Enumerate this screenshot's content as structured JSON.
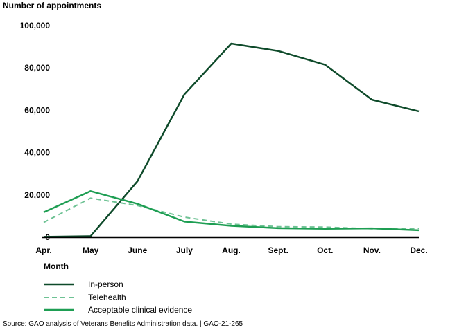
{
  "chart_data": {
    "type": "line",
    "ylabel": "Number of appointments",
    "xlabel": "Month",
    "categories": [
      "Apr.",
      "May",
      "June",
      "July",
      "Aug.",
      "Sept.",
      "Oct.",
      "Nov.",
      "Dec."
    ],
    "ylim": [
      0,
      100000
    ],
    "yticks": [
      0,
      20000,
      40000,
      60000,
      80000,
      100000
    ],
    "ytick_labels": [
      "0",
      "20,000",
      "40,000",
      "60,000",
      "80,000",
      "100,000"
    ],
    "grid": false,
    "legend_position": "bottom-left",
    "series": [
      {
        "name": "In-person",
        "color": "#0e4a2a",
        "style": "solid",
        "values": [
          200,
          500,
          26500,
          67500,
          91500,
          88000,
          81500,
          65000,
          59500
        ]
      },
      {
        "name": "Telehealth",
        "color": "#6ec294",
        "style": "dashed",
        "values": [
          7000,
          18500,
          15000,
          9500,
          6200,
          5000,
          4800,
          4000,
          4200
        ]
      },
      {
        "name": "Acceptable clinical evidence",
        "color": "#1e9e53",
        "style": "solid",
        "values": [
          11800,
          21800,
          15800,
          7400,
          5400,
          4300,
          4000,
          4200,
          3300
        ]
      }
    ]
  },
  "source": "Source: GAO analysis of Veterans Benefits Administration data.  |  GAO-21-265"
}
